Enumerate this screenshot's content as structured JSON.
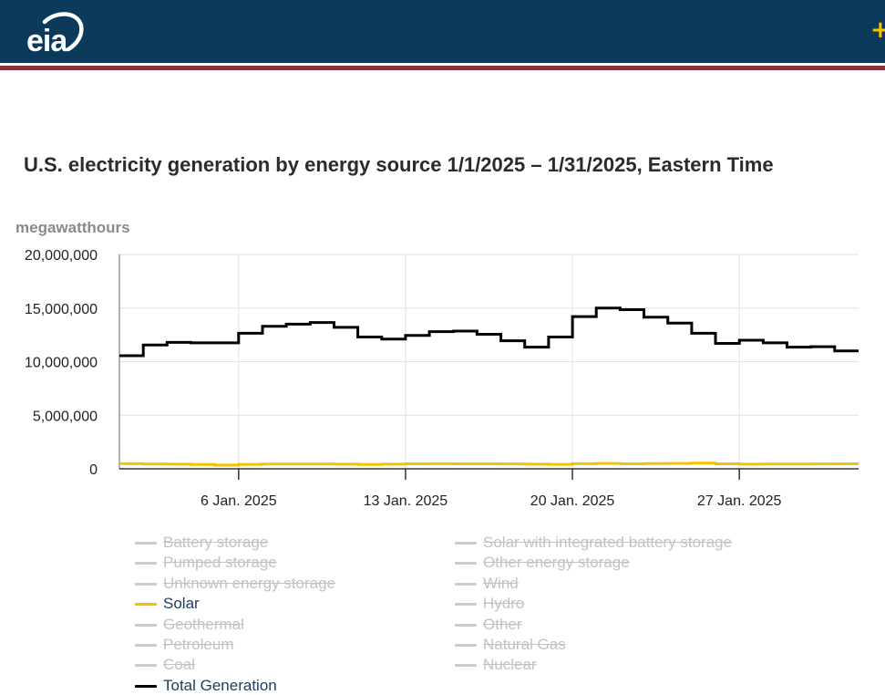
{
  "header": {
    "logo_text": "eia",
    "plus_symbol": "+"
  },
  "chart_data": {
    "type": "line",
    "title": "U.S. electricity generation by energy source 1/1/2025 – 1/31/2025, Eastern Time",
    "ylabel": "megawatthours",
    "xlabel": "",
    "ylim": [
      0,
      20000000
    ],
    "y_ticks": [
      0,
      5000000,
      10000000,
      15000000,
      20000000
    ],
    "y_tick_labels": [
      "0",
      "5,000,000",
      "10,000,000",
      "15,000,000",
      "20,000,000"
    ],
    "x_range": [
      "2025-01-01",
      "2025-01-31"
    ],
    "x_ticks": [
      "2025-01-06",
      "2025-01-13",
      "2025-01-20",
      "2025-01-27"
    ],
    "x_tick_labels": [
      "6 Jan. 2025",
      "13 Jan. 2025",
      "20 Jan. 2025",
      "27 Jan. 2025"
    ],
    "grid": true,
    "step": true,
    "x": [
      "2025-01-01",
      "2025-01-02",
      "2025-01-03",
      "2025-01-04",
      "2025-01-05",
      "2025-01-06",
      "2025-01-07",
      "2025-01-08",
      "2025-01-09",
      "2025-01-10",
      "2025-01-11",
      "2025-01-12",
      "2025-01-13",
      "2025-01-14",
      "2025-01-15",
      "2025-01-16",
      "2025-01-17",
      "2025-01-18",
      "2025-01-19",
      "2025-01-20",
      "2025-01-21",
      "2025-01-22",
      "2025-01-23",
      "2025-01-24",
      "2025-01-25",
      "2025-01-26",
      "2025-01-27",
      "2025-01-28",
      "2025-01-29",
      "2025-01-30",
      "2025-01-31"
    ],
    "series": [
      {
        "name": "Total Generation",
        "color": "#000000",
        "values": [
          10550000,
          11550000,
          11800000,
          11750000,
          11750000,
          12650000,
          13300000,
          13500000,
          13650000,
          13200000,
          12300000,
          12100000,
          12450000,
          12800000,
          12850000,
          12550000,
          11950000,
          11350000,
          12300000,
          14200000,
          15000000,
          14850000,
          14150000,
          13600000,
          12650000,
          11700000,
          12000000,
          11750000,
          11350000,
          11400000,
          11000000
        ]
      },
      {
        "name": "Solar",
        "color": "#f6c200",
        "values": [
          480000,
          450000,
          430000,
          400000,
          350000,
          420000,
          440000,
          450000,
          440000,
          430000,
          400000,
          430000,
          470000,
          480000,
          470000,
          470000,
          460000,
          430000,
          420000,
          480000,
          500000,
          470000,
          490000,
          500000,
          540000,
          470000,
          430000,
          440000,
          440000,
          460000,
          470000
        ]
      }
    ],
    "legend": {
      "placement": "bottom",
      "items": [
        {
          "label": "Battery storage",
          "color": "#cccccc",
          "visible": false
        },
        {
          "label": "Solar with integrated battery storage",
          "color": "#cccccc",
          "visible": false
        },
        {
          "label": "Pumped storage",
          "color": "#cccccc",
          "visible": false
        },
        {
          "label": "Other energy storage",
          "color": "#cccccc",
          "visible": false
        },
        {
          "label": "Unknown energy storage",
          "color": "#cccccc",
          "visible": false
        },
        {
          "label": "Wind",
          "color": "#cccccc",
          "visible": false
        },
        {
          "label": "Solar",
          "color": "#f6c200",
          "visible": true
        },
        {
          "label": "Hydro",
          "color": "#cccccc",
          "visible": false
        },
        {
          "label": "Geothermal",
          "color": "#cccccc",
          "visible": false
        },
        {
          "label": "Other",
          "color": "#cccccc",
          "visible": false
        },
        {
          "label": "Petroleum",
          "color": "#cccccc",
          "visible": false
        },
        {
          "label": "Natural Gas",
          "color": "#cccccc",
          "visible": false
        },
        {
          "label": "Coal",
          "color": "#cccccc",
          "visible": false
        },
        {
          "label": "Nuclear",
          "color": "#cccccc",
          "visible": false
        },
        {
          "label": "Total Generation",
          "color": "#000000",
          "visible": true
        }
      ]
    }
  }
}
